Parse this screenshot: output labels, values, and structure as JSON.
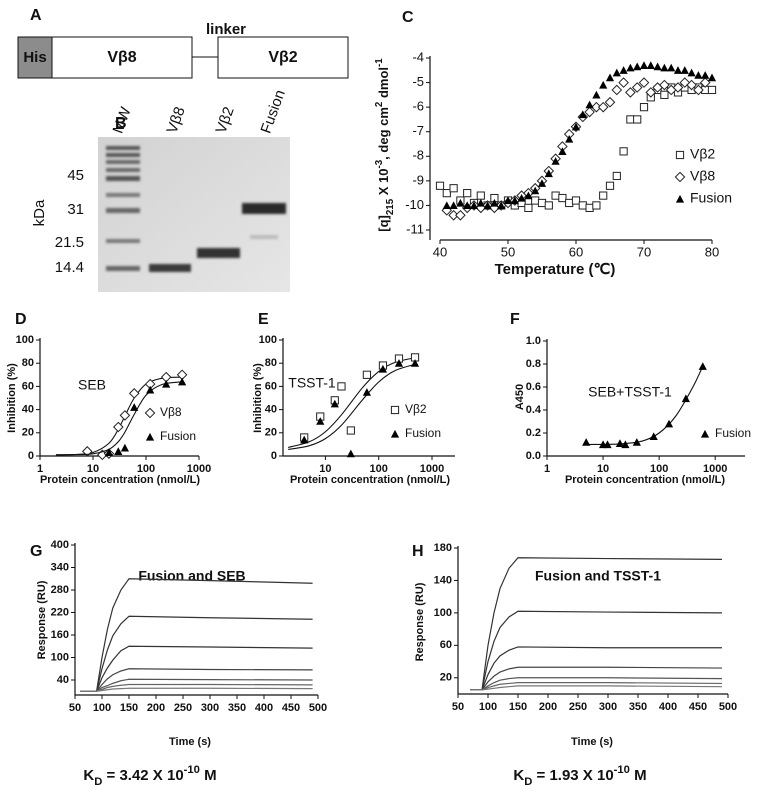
{
  "diagram": {
    "panel_label": "A",
    "domains": [
      "His",
      "Vβ8",
      "Vβ2"
    ],
    "linker": "linker"
  },
  "gel": {
    "panel_label": "B",
    "lanes": [
      "MW",
      "Vβ8",
      "Vβ2",
      "Fusion"
    ],
    "markers": [
      45,
      31,
      21.5,
      14.4
    ],
    "unit": "kDa"
  },
  "chart_data": [
    {
      "type": "scatter",
      "panel_label": "C",
      "x_label": "Temperature (℃)",
      "y_label": [
        {
          "text": "[q]",
          "pos": "normal"
        },
        {
          "text": "215",
          "pos": "sub"
        },
        {
          "text": " X 10",
          "pos": "normal"
        },
        {
          "text": "-3",
          "pos": "sup"
        },
        {
          "text": ", deg cm",
          "pos": "normal"
        },
        {
          "text": "2",
          "pos": "sup"
        },
        {
          "text": " dmol",
          "pos": "normal"
        },
        {
          "text": "-1",
          "pos": "sup"
        }
      ],
      "xlim": [
        40,
        80
      ],
      "ylim": [
        -11,
        -4
      ],
      "xticks": [
        40,
        50,
        60,
        70,
        80
      ],
      "yticks": [
        -11,
        -10,
        -9,
        -8,
        -7,
        -6,
        -5,
        -4
      ],
      "series": [
        {
          "name": "Vβ2",
          "marker": "square",
          "color": "#222222",
          "x": [
            40,
            41,
            42,
            43,
            44,
            45,
            46,
            47,
            48,
            49,
            50,
            51,
            52,
            53,
            54,
            55,
            56,
            57,
            58,
            59,
            60,
            61,
            62,
            63,
            64,
            65,
            66,
            67,
            68,
            69,
            70,
            71,
            72,
            73,
            74,
            75,
            76,
            77,
            78,
            79,
            80
          ],
          "values": [
            -9.2,
            -9.5,
            -9.3,
            -9.8,
            -9.5,
            -9.9,
            -9.6,
            -10,
            -9.7,
            -10,
            -9.8,
            -10,
            -9.9,
            -10.1,
            -9.8,
            -9.9,
            -10,
            -9.6,
            -9.7,
            -9.9,
            -9.8,
            -10,
            -10.1,
            -10,
            -9.6,
            -9.2,
            -8.8,
            -7.8,
            -6.5,
            -6.5,
            -6.0,
            -5.6,
            -5.3,
            -5.5,
            -5.2,
            -5.4,
            -5.2,
            -5.3,
            -5.2,
            -5.3,
            -5.3
          ]
        },
        {
          "name": "Vβ8",
          "marker": "diamond",
          "color": "#222222",
          "x": [
            41,
            42,
            43,
            44,
            45,
            46,
            47,
            48,
            49,
            50,
            51,
            52,
            53,
            54,
            55,
            56,
            57,
            58,
            59,
            60,
            61,
            62,
            63,
            64,
            65,
            66,
            67,
            68,
            69,
            70,
            71,
            72,
            73,
            74,
            75,
            76,
            77,
            78,
            79
          ],
          "values": [
            -10.2,
            -10.4,
            -10.4,
            -10.1,
            -10,
            -10.1,
            -10,
            -10.1,
            -10,
            -9.9,
            -9.8,
            -9.6,
            -9.5,
            -9.3,
            -9.0,
            -8.6,
            -8.1,
            -7.6,
            -7.1,
            -6.8,
            -6.4,
            -6.2,
            -6.0,
            -6.0,
            -5.8,
            -5.3,
            -5.0,
            -5.4,
            -5.2,
            -5.0,
            -5.4,
            -5.2,
            -5.1,
            -5.3,
            -5.2,
            -5.0,
            -5.1,
            -5.3,
            -5.0
          ]
        },
        {
          "name": "Fusion",
          "marker": "triangle",
          "color": "#000000",
          "x": [
            41,
            42,
            43,
            44,
            45,
            46,
            47,
            48,
            49,
            50,
            51,
            52,
            53,
            54,
            55,
            56,
            57,
            58,
            59,
            60,
            61,
            62,
            63,
            64,
            65,
            66,
            67,
            68,
            69,
            70,
            71,
            72,
            73,
            74,
            75,
            76,
            77,
            78,
            79,
            80
          ],
          "values": [
            -10,
            -10,
            -9.9,
            -10,
            -10,
            -9.9,
            -10,
            -9.9,
            -10,
            -9.8,
            -9.8,
            -9.7,
            -9.6,
            -9.4,
            -9.1,
            -8.7,
            -8.2,
            -7.8,
            -7.3,
            -6.8,
            -6.3,
            -5.9,
            -5.5,
            -5.1,
            -4.8,
            -4.6,
            -4.5,
            -4.4,
            -4.35,
            -4.3,
            -4.3,
            -4.35,
            -4.4,
            -4.4,
            -4.5,
            -4.5,
            -4.6,
            -4.7,
            -4.7,
            -4.8
          ]
        }
      ]
    },
    {
      "type": "scatter",
      "panel_label": "D",
      "annotation": "SEB",
      "log_x": true,
      "x_label": "Protein concentration (nmol/L)",
      "y_label": "Inhibition (%)",
      "xlim": [
        1,
        1000
      ],
      "ylim": [
        0,
        100
      ],
      "xticks": [
        1,
        10,
        100,
        1000
      ],
      "yticks": [
        0,
        20,
        40,
        60,
        80,
        100
      ],
      "series": [
        {
          "name": "Vβ8",
          "marker": "diamond",
          "color": "#222222",
          "x": [
            7.8,
            15,
            20,
            30,
            40,
            60,
            120,
            240,
            480
          ],
          "values": [
            4,
            1,
            2,
            25,
            35,
            54,
            62,
            68,
            70
          ],
          "fit_x": [
            2,
            5,
            10,
            20,
            30,
            40,
            60,
            100,
            200,
            500
          ],
          "fit": [
            1,
            1.4,
            3.0,
            11,
            23,
            34.5,
            50,
            62,
            67,
            68
          ]
        },
        {
          "name": "Fusion",
          "marker": "triangle",
          "color": "#000000",
          "x": [
            20,
            30,
            40,
            60,
            120,
            240,
            480
          ],
          "values": [
            3,
            4,
            7,
            42,
            57,
            62,
            64
          ],
          "fit_x": [
            2,
            5,
            10,
            20,
            30,
            40,
            60,
            100,
            200,
            500
          ],
          "fit": [
            1,
            1.2,
            1.9,
            5.7,
            12.3,
            20.6,
            35.9,
            52.4,
            61.6,
            64
          ]
        }
      ]
    },
    {
      "type": "scatter",
      "panel_label": "E",
      "annotation": "TSST-1",
      "log_x": true,
      "x_label": "Protein concentration (nmol/L)",
      "y_label": "Inhibition (%)",
      "xlim": [
        1.6,
        2700
      ],
      "ylim": [
        0,
        100
      ],
      "xticks": [
        10,
        100,
        1000
      ],
      "yticks": [
        0,
        20,
        40,
        60,
        80,
        100
      ],
      "series": [
        {
          "name": "Vβ2",
          "marker": "square",
          "color": "#222222",
          "x": [
            4,
            8,
            15,
            20,
            30,
            60,
            120,
            240,
            480
          ],
          "values": [
            16,
            34,
            48,
            60,
            22,
            70,
            78,
            84,
            85
          ],
          "fit_x": [
            2,
            5,
            10,
            20,
            50,
            100,
            200,
            500
          ],
          "fit": [
            7.4,
            12.3,
            20.9,
            35.5,
            59.1,
            72.8,
            80.6,
            84.9
          ]
        },
        {
          "name": "Fusion",
          "marker": "triangle",
          "color": "#000000",
          "x": [
            4,
            8,
            15,
            30,
            60,
            120,
            240,
            480
          ],
          "values": [
            14,
            30,
            45,
            2,
            55,
            75,
            80,
            80
          ],
          "fit_x": [
            2,
            5,
            10,
            20,
            50,
            100,
            200,
            500
          ],
          "fit": [
            5.6,
            8.9,
            15.0,
            26.5,
            48.6,
            63.8,
            73.5,
            79.2
          ]
        }
      ]
    },
    {
      "type": "scatter",
      "panel_label": "F",
      "annotation": "SEB+TSST-1",
      "log_x": true,
      "x_label": "Protein concentration (nmol/L)",
      "y_label": "A450",
      "xlim": [
        1,
        3400
      ],
      "ylim": [
        0,
        1
      ],
      "xticks": [
        1,
        10,
        100,
        1000
      ],
      "yticks": [
        {
          "value": 0,
          "label": "0.0"
        },
        0.2,
        0.4,
        0.6,
        0.8,
        {
          "value": 1,
          "label": "1.0"
        }
      ],
      "series": [
        {
          "name": "Fusion",
          "marker": "triangle",
          "color": "#000000",
          "x": [
            5,
            10,
            12,
            20,
            25,
            40,
            80,
            150,
            300,
            600
          ],
          "values": [
            0.12,
            0.1,
            0.1,
            0.11,
            0.1,
            0.12,
            0.17,
            0.28,
            0.5,
            0.78
          ],
          "fit_x": [
            5,
            20,
            50,
            100,
            200,
            400,
            600
          ],
          "fit": [
            0.1,
            0.105,
            0.13,
            0.2,
            0.35,
            0.6,
            0.78
          ]
        }
      ]
    },
    {
      "type": "line",
      "panel_label": "G",
      "title": "Fusion and SEB",
      "x_label": "Time (s)",
      "y_label": "Response (RU)",
      "kd": [
        {
          "text": "K",
          "pos": "normal"
        },
        {
          "text": "D",
          "pos": "sub"
        },
        {
          "text": " = 3.42 X 10",
          "pos": "normal"
        },
        {
          "text": "-10",
          "pos": "sup"
        },
        {
          "text": " M",
          "pos": "normal"
        }
      ],
      "xlim": [
        50,
        500
      ],
      "ylim": [
        0,
        400
      ],
      "xticks": [
        50,
        100,
        150,
        200,
        250,
        300,
        350,
        400,
        450,
        500
      ],
      "yticks": [
        40,
        100,
        160,
        220,
        280,
        340,
        400
      ],
      "x": [
        60,
        90,
        100,
        110,
        120,
        135,
        150,
        300,
        490
      ],
      "series": [
        {
          "color": "#333333",
          "values": [
            10,
            10,
            100,
            175,
            232,
            280,
            310,
            305,
            298
          ]
        },
        {
          "color": "#333333",
          "values": [
            10,
            10,
            70,
            120,
            158,
            190,
            210,
            206,
            202
          ]
        },
        {
          "color": "#333333",
          "values": [
            10,
            10,
            46,
            72,
            93,
            118,
            130,
            128,
            125
          ]
        },
        {
          "color": "#444444",
          "values": [
            10,
            10,
            28,
            43,
            54,
            64,
            70,
            68,
            67
          ]
        },
        {
          "color": "#555555",
          "values": [
            10,
            10,
            20,
            25,
            31,
            38,
            42,
            41,
            40
          ]
        },
        {
          "color": "#666666",
          "values": [
            10,
            10,
            15,
            20,
            23,
            26,
            28,
            28,
            27
          ]
        },
        {
          "color": "#777777",
          "values": [
            10,
            10,
            12,
            14,
            16,
            17,
            18,
            18,
            17
          ]
        }
      ]
    },
    {
      "type": "line",
      "panel_label": "H",
      "title": "Fusion and TSST-1",
      "x_label": "Time (s)",
      "y_label": "Response (RU)",
      "kd": [
        {
          "text": "K",
          "pos": "normal"
        },
        {
          "text": "D",
          "pos": "sub"
        },
        {
          "text": " = 1.93 X 10",
          "pos": "normal"
        },
        {
          "text": "-10",
          "pos": "sup"
        },
        {
          "text": " M",
          "pos": "normal"
        }
      ],
      "xlim": [
        50,
        500
      ],
      "ylim": [
        0,
        180
      ],
      "xticks": [
        50,
        100,
        150,
        200,
        250,
        300,
        350,
        400,
        450,
        500
      ],
      "yticks": [
        20,
        60,
        100,
        140,
        180
      ],
      "x": [
        70,
        90,
        100,
        110,
        120,
        135,
        150,
        300,
        490
      ],
      "series": [
        {
          "color": "#333333",
          "values": [
            5,
            5,
            60,
            100,
            130,
            155,
            168,
            167,
            166
          ]
        },
        {
          "color": "#333333",
          "values": [
            5,
            5,
            40,
            65,
            82,
            95,
            102,
            101,
            100
          ]
        },
        {
          "color": "#333333",
          "values": [
            5,
            5,
            24,
            38,
            47,
            54,
            58,
            57,
            57
          ]
        },
        {
          "color": "#444444",
          "values": [
            5,
            5,
            15,
            22,
            27,
            31,
            33,
            33,
            32
          ]
        },
        {
          "color": "#555555",
          "values": [
            5,
            5,
            10,
            14,
            17,
            19,
            20,
            20,
            19
          ]
        },
        {
          "color": "#666666",
          "values": [
            5,
            5,
            8,
            10,
            12,
            13,
            14,
            14,
            13
          ]
        },
        {
          "color": "#777777",
          "values": [
            5,
            5,
            6,
            7,
            8,
            9,
            10,
            10,
            9
          ]
        }
      ]
    }
  ]
}
